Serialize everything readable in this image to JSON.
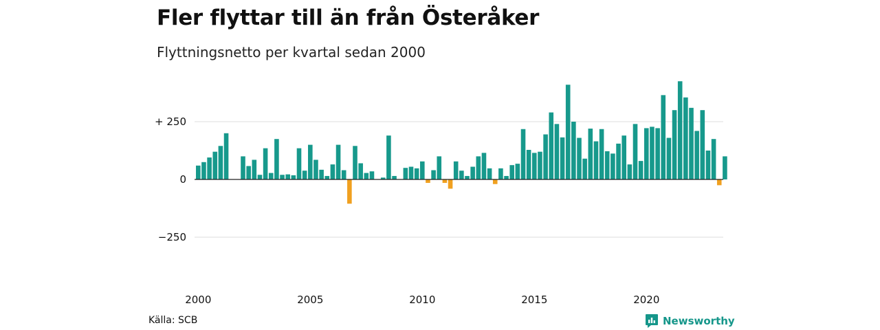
{
  "title": "Fler flyttar till än från Österåker",
  "subtitle": "Flyttningsnetto per kvartal sedan 2000",
  "source": "Källa: SCB",
  "brand": "Newsworthy",
  "colors": {
    "positive": "#17998c",
    "negative": "#f0a020",
    "grid": "#dddddd",
    "baseline": "#222222",
    "brand": "#15968a"
  },
  "chart_data": {
    "type": "bar",
    "title": "Fler flyttar till än från Österåker",
    "subtitle": "Flyttningsnetto per kvartal sedan 2000",
    "xlabel": "",
    "ylabel": "",
    "ylim": [
      -365,
      430
    ],
    "xlim": [
      "2000-Q1",
      "2023-Q3"
    ],
    "grid": true,
    "y_ticks": [
      {
        "value": 250,
        "label": "+ 250"
      },
      {
        "value": 0,
        "label": "0"
      },
      {
        "value": -250,
        "label": "−250"
      }
    ],
    "x_ticks": [
      {
        "value": "2000-Q1",
        "label": "2000"
      },
      {
        "value": "2005-Q1",
        "label": "2005"
      },
      {
        "value": "2010-Q1",
        "label": "2010"
      },
      {
        "value": "2015-Q1",
        "label": "2015"
      },
      {
        "value": "2020-Q1",
        "label": "2020"
      }
    ],
    "categories": [
      "2000-Q1",
      "2000-Q2",
      "2000-Q3",
      "2000-Q4",
      "2001-Q1",
      "2001-Q2",
      "2001-Q3",
      "2001-Q4",
      "2002-Q1",
      "2002-Q2",
      "2002-Q3",
      "2002-Q4",
      "2003-Q1",
      "2003-Q2",
      "2003-Q3",
      "2003-Q4",
      "2004-Q1",
      "2004-Q2",
      "2004-Q3",
      "2004-Q4",
      "2005-Q1",
      "2005-Q2",
      "2005-Q3",
      "2005-Q4",
      "2006-Q1",
      "2006-Q2",
      "2006-Q3",
      "2006-Q4",
      "2007-Q1",
      "2007-Q2",
      "2007-Q3",
      "2007-Q4",
      "2008-Q1",
      "2008-Q2",
      "2008-Q3",
      "2008-Q4",
      "2009-Q1",
      "2009-Q2",
      "2009-Q3",
      "2009-Q4",
      "2010-Q1",
      "2010-Q2",
      "2010-Q3",
      "2010-Q4",
      "2011-Q1",
      "2011-Q2",
      "2011-Q3",
      "2011-Q4",
      "2012-Q1",
      "2012-Q2",
      "2012-Q3",
      "2012-Q4",
      "2013-Q1",
      "2013-Q2",
      "2013-Q3",
      "2013-Q4",
      "2014-Q1",
      "2014-Q2",
      "2014-Q3",
      "2014-Q4",
      "2015-Q1",
      "2015-Q2",
      "2015-Q3",
      "2015-Q4",
      "2016-Q1",
      "2016-Q2",
      "2016-Q3",
      "2016-Q4",
      "2017-Q1",
      "2017-Q2",
      "2017-Q3",
      "2017-Q4",
      "2018-Q1",
      "2018-Q2",
      "2018-Q3",
      "2018-Q4",
      "2019-Q1",
      "2019-Q2",
      "2019-Q3",
      "2019-Q4",
      "2020-Q1",
      "2020-Q2",
      "2020-Q3",
      "2020-Q4",
      "2021-Q1",
      "2021-Q2",
      "2021-Q3",
      "2021-Q4",
      "2022-Q1",
      "2022-Q2",
      "2022-Q3",
      "2022-Q4",
      "2023-Q1",
      "2023-Q2",
      "2023-Q3"
    ],
    "values": [
      60,
      75,
      95,
      120,
      145,
      200,
      0,
      0,
      100,
      58,
      85,
      20,
      135,
      28,
      175,
      20,
      22,
      18,
      135,
      38,
      150,
      85,
      42,
      15,
      65,
      150,
      40,
      -105,
      145,
      70,
      28,
      35,
      0,
      8,
      190,
      15,
      0,
      50,
      55,
      48,
      78,
      -15,
      40,
      100,
      -15,
      -40,
      78,
      38,
      15,
      55,
      100,
      115,
      48,
      -20,
      48,
      15,
      62,
      68,
      218,
      128,
      115,
      120,
      195,
      290,
      240,
      182,
      410,
      250,
      180,
      90,
      220,
      165,
      218,
      122,
      112,
      155,
      190,
      65,
      240,
      80,
      222,
      228,
      222,
      365,
      180,
      300,
      425,
      355,
      310,
      210,
      300,
      125,
      175,
      -25,
      100
    ]
  }
}
